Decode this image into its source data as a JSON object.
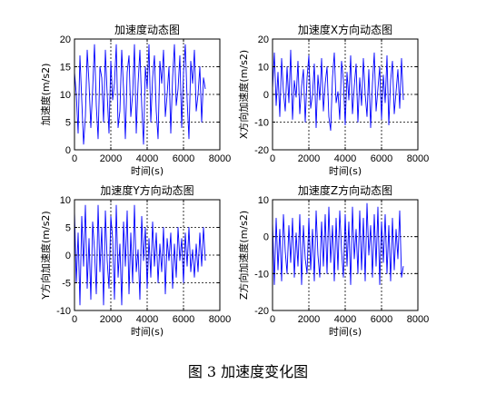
{
  "caption": "图 3  加速度变化图",
  "chart_data": [
    {
      "type": "line",
      "title": "加速度动态图",
      "xlabel": "时间(s)",
      "ylabel": "加速度(m/s2)",
      "xlim": [
        0,
        8000
      ],
      "ylim": [
        0,
        20
      ],
      "xticks": [
        0,
        2000,
        4000,
        6000,
        8000
      ],
      "yticks": [
        0,
        5,
        10,
        15,
        20
      ],
      "grid": true,
      "color": "#0000ff",
      "series": [
        {
          "x": [
            0,
            100,
            200,
            300,
            400,
            500,
            600,
            700,
            800,
            900,
            1000,
            1100,
            1200,
            1300,
            1400,
            1500,
            1600,
            1700,
            1800,
            1900,
            2000,
            2100,
            2200,
            2300,
            2400,
            2500,
            2600,
            2700,
            2800,
            2900,
            3000,
            3100,
            3200,
            3300,
            3400,
            3500,
            3600,
            3700,
            3800,
            3900,
            4000,
            4100,
            4200,
            4300,
            4400,
            4500,
            4600,
            4700,
            4800,
            4900,
            5000,
            5100,
            5200,
            5300,
            5400,
            5500,
            5600,
            5700,
            5800,
            5900,
            6000,
            6100,
            6200,
            6300,
            6400,
            6500,
            6600,
            6700,
            6800,
            6900,
            7000,
            7100,
            7200
          ],
          "values": [
            14,
            10,
            3,
            17,
            9,
            1,
            6,
            18,
            12,
            4,
            11,
            19,
            8,
            2,
            15,
            13,
            5,
            18,
            10,
            3,
            16,
            9,
            12,
            19,
            4,
            7,
            18,
            11,
            2,
            14,
            17,
            6,
            10,
            19,
            3,
            12,
            18,
            8,
            1,
            15,
            11,
            19,
            5,
            13,
            17,
            7,
            2,
            16,
            12,
            18,
            6,
            10,
            15,
            3,
            13,
            19,
            8,
            11,
            17,
            4,
            14,
            19,
            9,
            2,
            16,
            12,
            18,
            7,
            10,
            15,
            5,
            13,
            11
          ]
        }
      ]
    },
    {
      "type": "line",
      "title": "加速度X方向动态图",
      "xlabel": "时间(s)",
      "ylabel": "X方向加速度(m/s2)",
      "xlim": [
        0,
        8000
      ],
      "ylim": [
        -20,
        20
      ],
      "xticks": [
        0,
        2000,
        4000,
        6000,
        8000
      ],
      "yticks": [
        -20,
        -10,
        0,
        10,
        20
      ],
      "grid": true,
      "color": "#0000ff",
      "series": [
        {
          "x": [
            0,
            100,
            200,
            300,
            400,
            500,
            600,
            700,
            800,
            900,
            1000,
            1100,
            1200,
            1300,
            1400,
            1500,
            1600,
            1700,
            1800,
            1900,
            2000,
            2100,
            2200,
            2300,
            2400,
            2500,
            2600,
            2700,
            2800,
            2900,
            3000,
            3100,
            3200,
            3300,
            3400,
            3500,
            3600,
            3700,
            3800,
            3900,
            4000,
            4100,
            4200,
            4300,
            4400,
            4500,
            4600,
            4700,
            4800,
            4900,
            5000,
            5100,
            5200,
            5300,
            5400,
            5500,
            5600,
            5700,
            5800,
            5900,
            6000,
            6100,
            6200,
            6300,
            6400,
            6500,
            6600,
            6700,
            6800,
            6900,
            7000,
            7100,
            7200
          ],
          "values": [
            2,
            15,
            -4,
            8,
            -8,
            13,
            1,
            -6,
            10,
            -3,
            16,
            -9,
            5,
            -1,
            12,
            -7,
            3,
            9,
            -10,
            6,
            14,
            -5,
            0,
            11,
            -12,
            7,
            -2,
            13,
            -6,
            4,
            10,
            -8,
            -13,
            6,
            15,
            -3,
            1,
            -9,
            12,
            5,
            -11,
            8,
            -2,
            14,
            -7,
            3,
            11,
            -10,
            6,
            -4,
            13,
            0,
            -8,
            9,
            -12,
            4,
            15,
            -6,
            2,
            10,
            -9,
            7,
            -3,
            14,
            -11,
            5,
            12,
            -7,
            1,
            9,
            -5,
            13,
            -2
          ]
        }
      ]
    },
    {
      "type": "line",
      "title": "加速度Y方向动态图",
      "xlabel": "时间(s)",
      "ylabel": "Y方向加速度(m/s2)",
      "xlim": [
        0,
        8000
      ],
      "ylim": [
        -10,
        10
      ],
      "xticks": [
        0,
        2000,
        4000,
        6000,
        8000
      ],
      "yticks": [
        -10,
        -5,
        0,
        5,
        10
      ],
      "grid": true,
      "color": "#0000ff",
      "series": [
        {
          "x": [
            0,
            100,
            200,
            300,
            400,
            500,
            600,
            700,
            800,
            900,
            1000,
            1100,
            1200,
            1300,
            1400,
            1500,
            1600,
            1700,
            1800,
            1900,
            2000,
            2100,
            2200,
            2300,
            2400,
            2500,
            2600,
            2700,
            2800,
            2900,
            3000,
            3100,
            3200,
            3300,
            3400,
            3500,
            3600,
            3700,
            3800,
            3900,
            4000,
            4100,
            4200,
            4300,
            4400,
            4500,
            4600,
            4700,
            4800,
            4900,
            5000,
            5100,
            5200,
            5300,
            5400,
            5500,
            5600,
            5700,
            5800,
            5900,
            6000,
            6100,
            6200,
            6300,
            6400,
            6500,
            6600,
            6700,
            6800,
            6900,
            7000,
            7100,
            7200
          ],
          "values": [
            8,
            -5,
            4,
            -9,
            7,
            -2,
            9,
            -6,
            3,
            -8,
            6,
            1,
            -7,
            9,
            -3,
            5,
            -9,
            8,
            -1,
            -6,
            7,
            3,
            -8,
            9,
            -4,
            2,
            -9,
            6,
            -2,
            8,
            -7,
            4,
            -5,
            9,
            -3,
            1,
            -8,
            7,
            -1,
            5,
            -6,
            3,
            -4,
            6,
            -2,
            4,
            -5,
            2,
            -3,
            5,
            -7,
            3,
            -1,
            4,
            -6,
            2,
            -4,
            5,
            -1,
            3,
            -5,
            4,
            -2,
            5,
            -3,
            1,
            -4,
            2,
            -3,
            4,
            -2,
            5,
            -1
          ]
        }
      ]
    },
    {
      "type": "line",
      "title": "加速度Z方向动态图",
      "xlabel": "时间(s)",
      "ylabel": "Z方向加速度(m/s2)",
      "xlim": [
        0,
        8000
      ],
      "ylim": [
        -20,
        10
      ],
      "xticks": [
        0,
        2000,
        4000,
        6000,
        8000
      ],
      "yticks": [
        -20,
        -10,
        0,
        10
      ],
      "grid": true,
      "color": "#0000ff",
      "series": [
        {
          "x": [
            0,
            100,
            200,
            300,
            400,
            500,
            600,
            700,
            800,
            900,
            1000,
            1100,
            1200,
            1300,
            1400,
            1500,
            1600,
            1700,
            1800,
            1900,
            2000,
            2100,
            2200,
            2300,
            2400,
            2500,
            2600,
            2700,
            2800,
            2900,
            3000,
            3100,
            3200,
            3300,
            3400,
            3500,
            3600,
            3700,
            3800,
            3900,
            4000,
            4100,
            4200,
            4300,
            4400,
            4500,
            4600,
            4700,
            4800,
            4900,
            5000,
            5100,
            5200,
            5300,
            5400,
            5500,
            5600,
            5700,
            5800,
            5900,
            6000,
            6100,
            6200,
            6300,
            6400,
            6500,
            6600,
            6700,
            6800,
            6900,
            7000,
            7100,
            7200
          ],
          "values": [
            4,
            -13,
            5,
            -9,
            2,
            -12,
            6,
            -4,
            -10,
            3,
            -7,
            5,
            -11,
            1,
            -8,
            6,
            -13,
            3,
            -6,
            -10,
            5,
            -9,
            2,
            -12,
            7,
            -5,
            -11,
            4,
            -8,
            6,
            -10,
            8,
            -7,
            3,
            -12,
            5,
            -9,
            7,
            -4,
            -11,
            6,
            -8,
            4,
            -13,
            8,
            -6,
            2,
            -10,
            7,
            -9,
            5,
            -12,
            9,
            -5,
            3,
            -11,
            6,
            -8,
            8,
            -13,
            4,
            -7,
            6,
            -10,
            3,
            -12,
            5,
            -9,
            2,
            -6,
            7,
            -11,
            -8
          ]
        }
      ]
    }
  ]
}
